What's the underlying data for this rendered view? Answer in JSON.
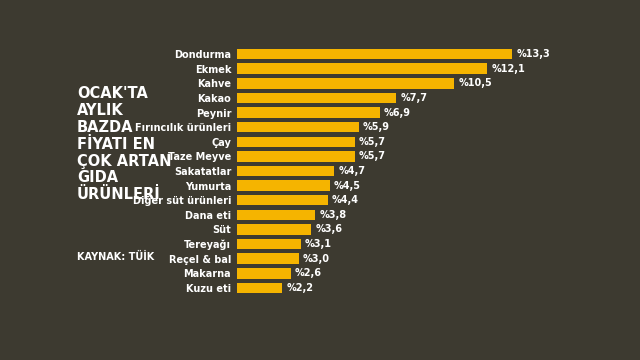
{
  "chart_data": {
    "type": "bar",
    "orientation": "horizontal",
    "title": "OCAK'TA\nAYLIK\nBAZDA\nFİYATI EN\nÇOK ARTAN\nGIDA\nÜRÜNLERİ",
    "subtitle": "KAYNAK: TÜİK",
    "categories": [
      "Dondurma",
      "Ekmek",
      "Kahve",
      "Kakao",
      "Peynir",
      "Fırıncılık ürünleri",
      "Çay",
      "Taze Meyve",
      "Sakatatlar",
      "Yumurta",
      "Diğer süt ürünleri",
      "Dana eti",
      "Süt",
      "Tereyağı",
      "Reçel & bal",
      "Makarna",
      "Kuzu eti"
    ],
    "values": [
      13.3,
      12.1,
      10.5,
      7.7,
      6.9,
      5.9,
      5.7,
      5.7,
      4.7,
      4.5,
      4.4,
      3.8,
      3.6,
      3.1,
      3.0,
      2.6,
      2.2
    ],
    "value_labels": [
      "%13,3",
      "%12,1",
      "%10,5",
      "%7,7",
      "%6,9",
      "%5,9",
      "%5,7",
      "%5,7",
      "%4,7",
      "%4,5",
      "%4,4",
      "%3,8",
      "%3,6",
      "%3,1",
      "%3,0",
      "%2,6",
      "%2,2"
    ],
    "color": "#f5b400",
    "xlim": [
      0,
      13.3
    ],
    "data_labels": true,
    "tick_labels": "y",
    "grid": false
  }
}
